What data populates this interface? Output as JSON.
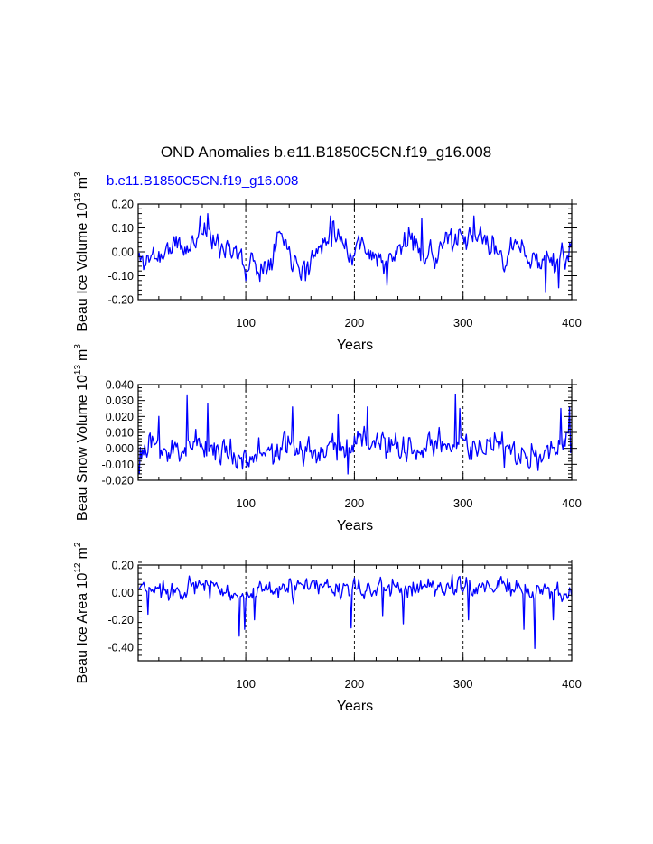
{
  "title": "OND Anomalies b.e11.B1850C5CN.f19_g16.008",
  "legend_label": "b.e11.B1850C5CN.f19_g16.008",
  "colors": {
    "series": "#0000ff",
    "axes": "#000000",
    "title": "#000000"
  },
  "chart_data": [
    {
      "type": "line",
      "name": "volume-panel",
      "ylabel_prefix": "Beau Ice Volume 10",
      "ylabel_exp": "13",
      "ylabel_unit": "m",
      "ylabel_unit_exp": "3",
      "xlabel": "Years",
      "xlim": [
        1,
        400
      ],
      "ylim": [
        -0.2,
        0.2
      ],
      "yticks": [
        -0.2,
        -0.1,
        0.0,
        0.1,
        0.2
      ],
      "ytick_labels": [
        "-0.20",
        "-0.10",
        "0.00",
        "0.10",
        "0.20"
      ],
      "xticks": [
        100,
        200,
        300,
        400
      ],
      "xtick_labels": [
        "100",
        "200",
        "300",
        "400"
      ],
      "vlines": [
        100,
        200,
        300
      ],
      "series": {
        "name": "b.e11.B1850C5CN.f19_g16.008",
        "kx": [
          1,
          8,
          15,
          22,
          30,
          38,
          46,
          54,
          60,
          65,
          72,
          80,
          88,
          95,
          100,
          106,
          112,
          118,
          124,
          130,
          136,
          142,
          148,
          155,
          162,
          168,
          174,
          180,
          186,
          192,
          198,
          204,
          210,
          217,
          224,
          230,
          236,
          242,
          248,
          255,
          262,
          268,
          274,
          280,
          286,
          292,
          298,
          304,
          310,
          316,
          322,
          328,
          334,
          340,
          346,
          352,
          358,
          364,
          370,
          376,
          382,
          388,
          394,
          400
        ],
        "ky": [
          -0.03,
          -0.04,
          -0.01,
          -0.02,
          0.02,
          0.03,
          0.0,
          0.06,
          0.1,
          0.09,
          0.02,
          0.03,
          0.02,
          -0.03,
          -0.07,
          -0.03,
          -0.07,
          -0.06,
          0.0,
          0.08,
          0.05,
          -0.02,
          -0.03,
          -0.07,
          -0.02,
          0.01,
          0.07,
          0.1,
          0.07,
          0.03,
          -0.02,
          0.04,
          0.03,
          -0.01,
          -0.04,
          -0.06,
          -0.03,
          0.02,
          0.05,
          0.04,
          0.01,
          0.0,
          -0.03,
          0.03,
          0.05,
          0.04,
          0.04,
          0.04,
          0.05,
          0.07,
          0.04,
          0.01,
          0.0,
          -0.03,
          0.03,
          0.0,
          0.0,
          -0.03,
          -0.04,
          -0.02,
          -0.03,
          -0.05,
          -0.03,
          0.03
        ],
        "noise": 0.042,
        "seed": 11,
        "spikes": [
          [
            65,
            0.16
          ],
          [
            58,
            0.15
          ],
          [
            178,
            0.15
          ],
          [
            310,
            0.15
          ],
          [
            155,
            -0.12
          ],
          [
            230,
            -0.14
          ],
          [
            262,
            0.14
          ],
          [
            376,
            -0.17
          ],
          [
            388,
            -0.15
          ],
          [
            100,
            -0.12
          ]
        ],
        "clamp": [
          -0.175,
          0.16
        ]
      }
    },
    {
      "type": "line",
      "name": "snow-panel",
      "ylabel_prefix": "Beau Snow Volume 10",
      "ylabel_exp": "13",
      "ylabel_unit": "m",
      "ylabel_unit_exp": "3",
      "xlabel": "Years",
      "xlim": [
        1,
        400
      ],
      "ylim": [
        -0.02,
        0.04
      ],
      "yticks": [
        -0.02,
        -0.01,
        0.0,
        0.01,
        0.02,
        0.03,
        0.04
      ],
      "ytick_labels": [
        "-0.020",
        "-0.010",
        "0.000",
        "0.010",
        "0.020",
        "0.030",
        "0.040"
      ],
      "xticks": [
        100,
        200,
        300,
        400
      ],
      "xtick_labels": [
        "100",
        "200",
        "300",
        "400"
      ],
      "vlines": [
        100,
        200,
        300
      ],
      "series": {
        "name": "b.e11.B1850C5CN.f19_g16.008",
        "kx": [
          1,
          10,
          20,
          30,
          40,
          50,
          60,
          70,
          80,
          90,
          100,
          110,
          120,
          130,
          140,
          150,
          160,
          170,
          180,
          190,
          200,
          210,
          220,
          230,
          240,
          250,
          260,
          270,
          280,
          290,
          300,
          310,
          320,
          330,
          340,
          350,
          360,
          370,
          380,
          390,
          400
        ],
        "ky": [
          -0.004,
          -0.002,
          0.002,
          -0.004,
          0.0,
          0.004,
          0.002,
          0.0,
          -0.002,
          -0.004,
          -0.005,
          -0.004,
          -0.003,
          -0.002,
          0.0,
          0.001,
          -0.004,
          0.0,
          0.002,
          0.0,
          0.004,
          0.006,
          0.003,
          0.0,
          -0.004,
          0.002,
          -0.002,
          0.0,
          0.001,
          0.005,
          0.004,
          0.0,
          0.002,
          0.001,
          -0.002,
          -0.004,
          -0.005,
          -0.004,
          -0.003,
          -0.002,
          0.004
        ],
        "noise": 0.0075,
        "seed": 23,
        "spikes": [
          [
            46,
            0.033
          ],
          [
            293,
            0.034
          ],
          [
            297,
            0.025
          ],
          [
            65,
            0.028
          ],
          [
            212,
            0.026
          ],
          [
            143,
            0.026
          ],
          [
            185,
            0.021
          ],
          [
            398,
            0.026
          ],
          [
            390,
            0.025
          ],
          [
            20,
            0.02
          ],
          [
            2,
            -0.016
          ],
          [
            194,
            -0.016
          ],
          [
            338,
            -0.012
          ]
        ],
        "clamp": [
          -0.017,
          0.035
        ]
      }
    },
    {
      "type": "line",
      "name": "area-panel",
      "ylabel_prefix": "Beau Ice Area 10",
      "ylabel_exp": "12",
      "ylabel_unit": "m",
      "ylabel_unit_exp": "2",
      "xlabel": "Years",
      "xlim": [
        1,
        400
      ],
      "ylim": [
        -0.5,
        0.2
      ],
      "yticks": [
        -0.4,
        -0.2,
        0.0,
        0.2
      ],
      "ytick_labels": [
        "-0.40",
        "-0.20",
        "0.00",
        "0.20"
      ],
      "xticks": [
        100,
        200,
        300,
        400
      ],
      "xtick_labels": [
        "100",
        "200",
        "300",
        "400"
      ],
      "vlines": [
        100,
        200,
        300
      ],
      "series": {
        "name": "b.e11.B1850C5CN.f19_g16.008",
        "kx": [
          1,
          20,
          40,
          60,
          80,
          100,
          120,
          140,
          160,
          180,
          200,
          220,
          240,
          260,
          280,
          300,
          320,
          340,
          360,
          380,
          400
        ],
        "ky": [
          0.02,
          0.02,
          0.03,
          0.04,
          0.03,
          -0.03,
          0.0,
          0.03,
          0.04,
          0.03,
          0.01,
          0.04,
          0.02,
          0.04,
          0.04,
          0.05,
          0.04,
          0.04,
          0.0,
          0.0,
          0.0
        ],
        "noise": 0.06,
        "seed": 37,
        "spikes": [
          [
            94,
            -0.32
          ],
          [
            99,
            -0.27
          ],
          [
            366,
            -0.41
          ],
          [
            356,
            -0.27
          ],
          [
            197,
            -0.26
          ],
          [
            10,
            -0.16
          ],
          [
            245,
            -0.23
          ],
          [
            108,
            -0.2
          ],
          [
            305,
            -0.2
          ],
          [
            226,
            -0.17
          ],
          [
            383,
            -0.2
          ],
          [
            48,
            0.12
          ],
          [
            290,
            0.13
          ]
        ],
        "clamp": [
          -0.42,
          0.14
        ]
      }
    }
  ]
}
